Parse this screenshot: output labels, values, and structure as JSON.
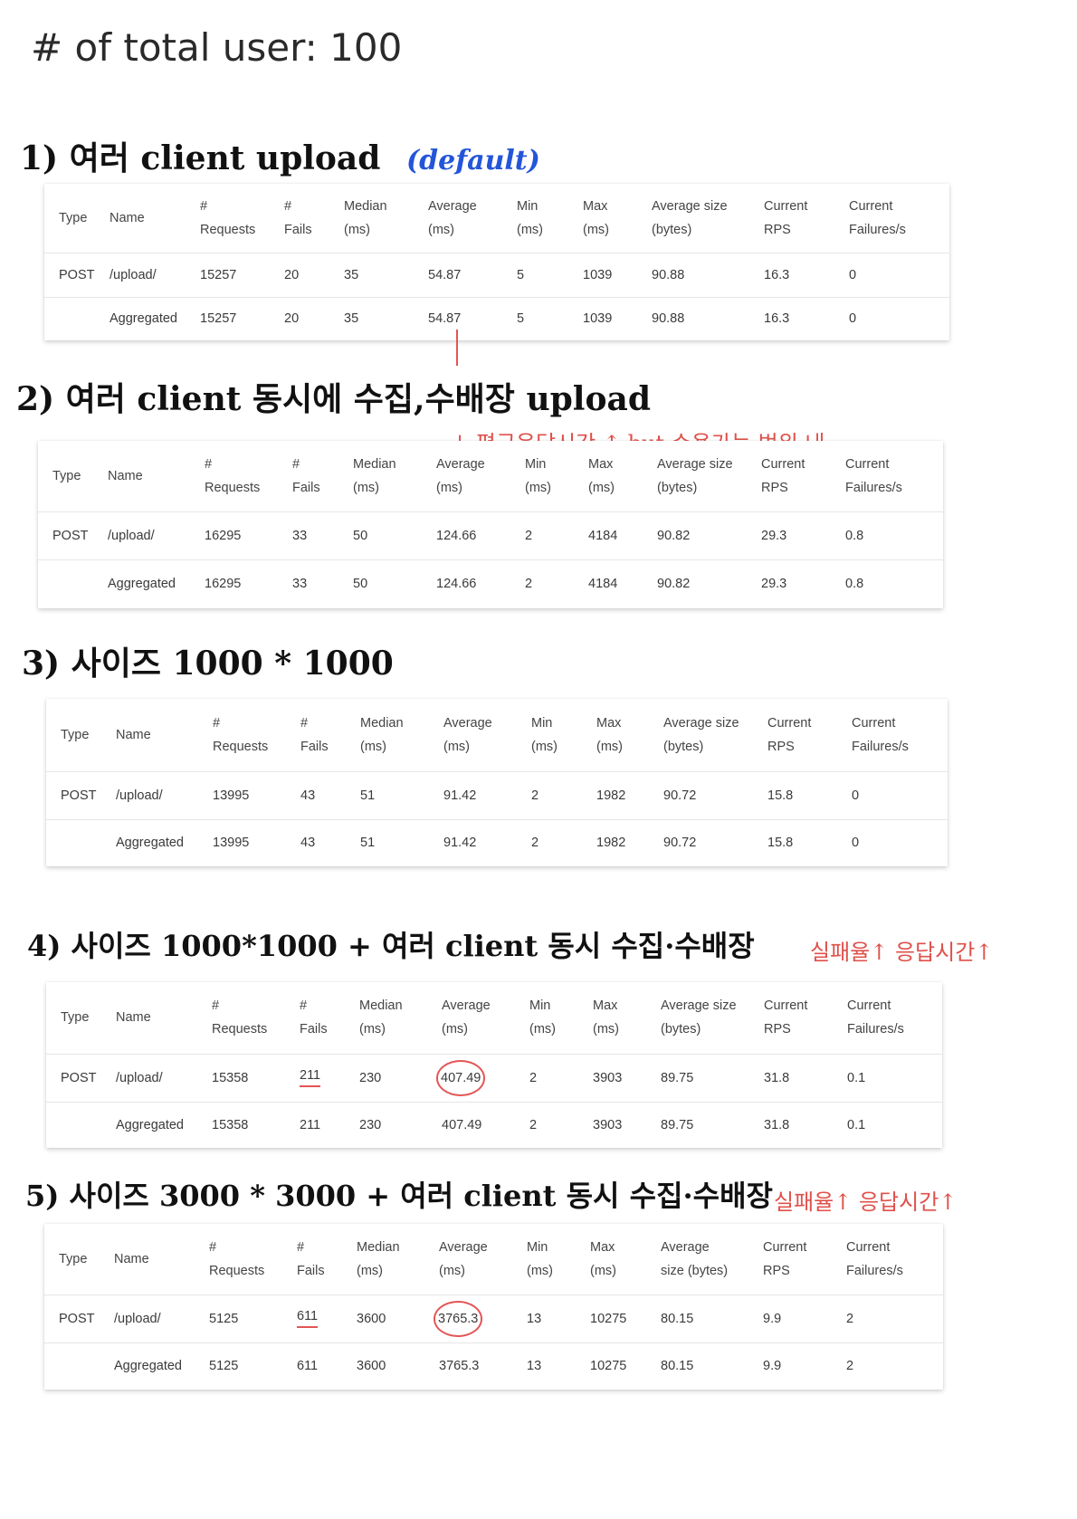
{
  "page_title": "# of total user: 100",
  "columns": [
    {
      "l1": "Type",
      "l2": ""
    },
    {
      "l1": "Name",
      "l2": ""
    },
    {
      "l1": "#",
      "l2": "Requests"
    },
    {
      "l1": "#",
      "l2": "Fails"
    },
    {
      "l1": "Median",
      "l2": "(ms)"
    },
    {
      "l1": "Average",
      "l2": "(ms)"
    },
    {
      "l1": "Min",
      "l2": "(ms)"
    },
    {
      "l1": "Max",
      "l2": "(ms)"
    },
    {
      "l1": "Average size",
      "l2": "(bytes)"
    },
    {
      "l1": "Current",
      "l2": "RPS"
    },
    {
      "l1": "Current",
      "l2": "Failures/s"
    }
  ],
  "columns_5": [
    {
      "l1": "Average",
      "l2": "size (bytes)"
    }
  ],
  "sections": [
    {
      "heading": "1) 여러 client upload",
      "heading_tag": "(default)",
      "rows": [
        [
          "POST",
          "/upload/",
          "15257",
          "20",
          "35",
          "54.87",
          "5",
          "1039",
          "90.88",
          "16.3",
          "0"
        ],
        [
          "",
          "Aggregated",
          "15257",
          "20",
          "35",
          "54.87",
          "5",
          "1039",
          "90.88",
          "16.3",
          "0"
        ]
      ]
    },
    {
      "heading": "2) 여러 client 동시에 수집,수배장 upload",
      "note": "↓ 평균응답시간 ↑   but 수용가능 범위 내",
      "rows": [
        [
          "POST",
          "/upload/",
          "16295",
          "33",
          "50",
          "124.66",
          "2",
          "4184",
          "90.82",
          "29.3",
          "0.8"
        ],
        [
          "",
          "Aggregated",
          "16295",
          "33",
          "50",
          "124.66",
          "2",
          "4184",
          "90.82",
          "29.3",
          "0.8"
        ]
      ]
    },
    {
      "heading": "3) 사이즈 1000 * 1000",
      "rows": [
        [
          "POST",
          "/upload/",
          "13995",
          "43",
          "51",
          "91.42",
          "2",
          "1982",
          "90.72",
          "15.8",
          "0"
        ],
        [
          "",
          "Aggregated",
          "13995",
          "43",
          "51",
          "91.42",
          "2",
          "1982",
          "90.72",
          "15.8",
          "0"
        ]
      ]
    },
    {
      "heading": "4) 사이즈 1000*1000 + 여러 client 동시 수집·수배장",
      "note": "실패율↑ 응답시간↑",
      "rows": [
        [
          "POST",
          "/upload/",
          "15358",
          "211",
          "230",
          "407.49",
          "2",
          "3903",
          "89.75",
          "31.8",
          "0.1"
        ],
        [
          "",
          "Aggregated",
          "15358",
          "211",
          "230",
          "407.49",
          "2",
          "3903",
          "89.75",
          "31.8",
          "0.1"
        ]
      ]
    },
    {
      "heading": "5) 사이즈 3000 * 3000 + 여러 client 동시 수집·수배장",
      "note": "실패율↑ 응답시간↑",
      "rows": [
        [
          "POST",
          "/upload/",
          "5125",
          "611",
          "3600",
          "3765.3",
          "13",
          "10275",
          "80.15",
          "9.9",
          "2"
        ],
        [
          "",
          "Aggregated",
          "5125",
          "611",
          "3600",
          "3765.3",
          "13",
          "10275",
          "80.15",
          "9.9",
          "2"
        ]
      ]
    }
  ]
}
